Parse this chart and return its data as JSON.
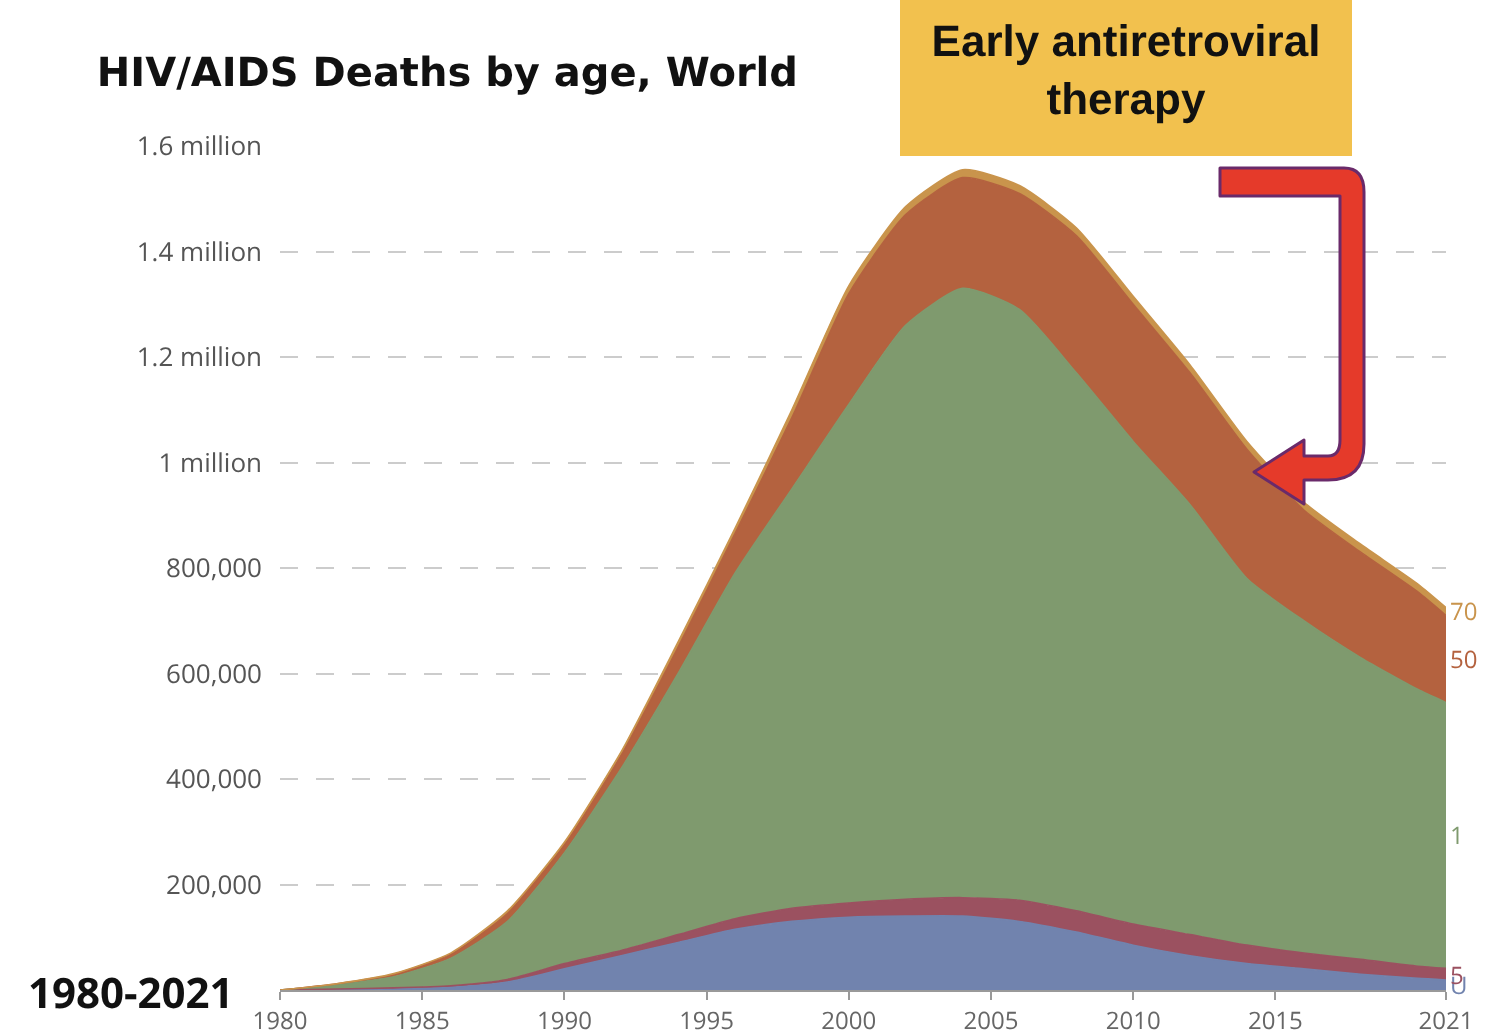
{
  "chart_data": {
    "type": "area",
    "title": "HIV/AIDS Deaths by age, World",
    "stacked": true,
    "x": [
      1980,
      1982,
      1984,
      1986,
      1988,
      1990,
      1992,
      1994,
      1996,
      1998,
      2000,
      2002,
      2004,
      2006,
      2008,
      2010,
      2012,
      2014,
      2016,
      2018,
      2020,
      2021
    ],
    "series": [
      {
        "name": "U",
        "color": "#7183ae",
        "values": [
          0,
          1000,
          2000,
          5000,
          15000,
          40000,
          65000,
          90000,
          115000,
          130000,
          138000,
          140000,
          140000,
          130000,
          110000,
          85000,
          65000,
          50000,
          40000,
          30000,
          22000,
          19000
        ]
      },
      {
        "name": "5",
        "color": "#9b5160",
        "values": [
          0,
          1000,
          2000,
          3000,
          5000,
          10000,
          10000,
          15000,
          20000,
          25000,
          27000,
          32000,
          35000,
          40000,
          40000,
          40000,
          40000,
          35000,
          30000,
          28000,
          23000,
          22000
        ]
      },
      {
        "name": "1",
        "color": "#7f9a6e",
        "values": [
          0,
          8000,
          21000,
          52000,
          110000,
          210000,
          345000,
          495000,
          655000,
          795000,
          945000,
          1088000,
          1155000,
          1120000,
          1020000,
          915000,
          815000,
          695000,
          630000,
          572000,
          525000,
          504000
        ]
      },
      {
        "name": "50",
        "color": "#b4623f",
        "values": [
          0,
          2000,
          5000,
          8000,
          15000,
          15000,
          25000,
          50000,
          75000,
          135000,
          210000,
          210000,
          210000,
          220000,
          260000,
          260000,
          250000,
          245000,
          210000,
          200000,
          185000,
          165000
        ]
      },
      {
        "name": "70",
        "color": "#c9944c",
        "values": [
          0,
          0,
          1000,
          2000,
          5000,
          5000,
          7000,
          10000,
          10000,
          15000,
          15000,
          15000,
          15000,
          15000,
          15000,
          15000,
          15000,
          15000,
          15000,
          15000,
          15000,
          15000
        ]
      }
    ],
    "xlim": [
      1980,
      2021
    ],
    "xticks": [
      1980,
      1985,
      1990,
      1995,
      2000,
      2005,
      2010,
      2015,
      2021
    ],
    "ylim": [
      0,
      1600000
    ],
    "yticks": [
      {
        "value": 200000,
        "label": "200,000"
      },
      {
        "value": 400000,
        "label": "400,000"
      },
      {
        "value": 600000,
        "label": "600,000"
      },
      {
        "value": 800000,
        "label": "800,000"
      },
      {
        "value": 1000000,
        "label": "1 million"
      },
      {
        "value": 1200000,
        "label": "1.2 million"
      },
      {
        "value": 1400000,
        "label": "1.4 million"
      },
      {
        "value": 1600000,
        "label": "1.6 million"
      }
    ],
    "grid": "y",
    "legend": false,
    "annotations": [
      "Early antiretroviral therapy",
      "1980-2021"
    ]
  }
}
